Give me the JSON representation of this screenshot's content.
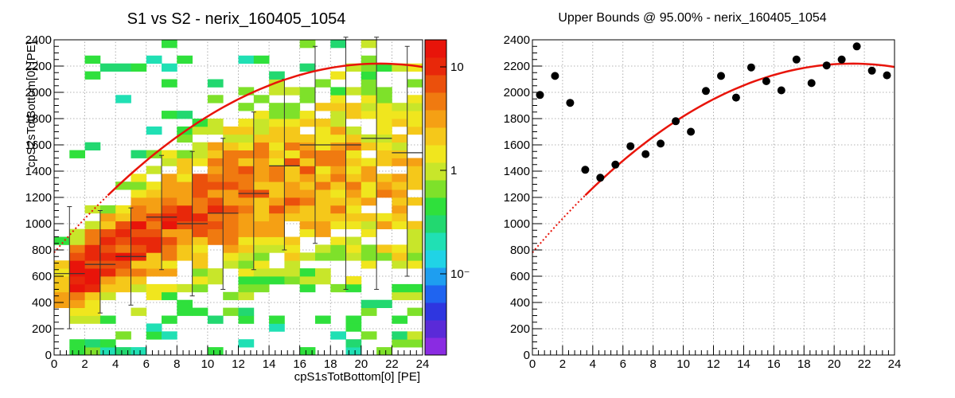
{
  "chart_data": [
    {
      "type": "heatmap",
      "title": "S1 vs S2 - nerix_160405_1054",
      "xlabel": "cpS1sTotBottom[0] [PE]",
      "ylabel": "cpS2sTotBottom[0] [PE]",
      "xlim": [
        0,
        24
      ],
      "ylim": [
        0,
        2400
      ],
      "xticks": [
        "0",
        "2",
        "4",
        "6",
        "8",
        "10",
        "12",
        "14",
        "16",
        "18",
        "20",
        "22",
        "24"
      ],
      "yticks": [
        "0",
        "200",
        "400",
        "600",
        "800",
        "1000",
        "1200",
        "1400",
        "1600",
        "1800",
        "2000",
        "2200",
        "2400"
      ],
      "grid": true,
      "colorbar": {
        "scale": "log",
        "labels": [
          "10",
          "1",
          "10⁻"
        ],
        "palette": "rainbow"
      },
      "profile": {
        "x": [
          1,
          3,
          5,
          7,
          9,
          11,
          13,
          15,
          17,
          19,
          21,
          23
        ],
        "mean": [
          620,
          690,
          750,
          1050,
          1000,
          1080,
          1230,
          1440,
          1600,
          1600,
          1650,
          1540
        ],
        "low": [
          200,
          320,
          380,
          650,
          450,
          500,
          650,
          800,
          850,
          500,
          500,
          600
        ],
        "high": [
          1130,
          1100,
          1120,
          1520,
          1550,
          1650,
          1850,
          2100,
          2350,
          2420,
          2420,
          2350
        ]
      },
      "fit": {
        "color": "#e8140a",
        "solid_range": [
          3.5,
          24
        ],
        "dotted_range": [
          0,
          3.5
        ],
        "coeffs": [
          780,
          135.7,
          -3.2
        ]
      }
    },
    {
      "type": "scatter",
      "title": "Upper Bounds @ 95.00% - nerix_160405_1054",
      "xlabel": "",
      "ylabel": "",
      "xlim": [
        0,
        24
      ],
      "ylim": [
        0,
        2400
      ],
      "xticks": [
        "0",
        "2",
        "4",
        "6",
        "8",
        "10",
        "12",
        "14",
        "16",
        "18",
        "20",
        "22",
        "24"
      ],
      "yticks": [
        "0",
        "200",
        "400",
        "600",
        "800",
        "1000",
        "1200",
        "1400",
        "1600",
        "1800",
        "2000",
        "2200",
        "2400"
      ],
      "grid": true,
      "points": [
        {
          "x": 0.5,
          "y": 1980
        },
        {
          "x": 1.5,
          "y": 2125
        },
        {
          "x": 2.5,
          "y": 1920
        },
        {
          "x": 3.5,
          "y": 1410
        },
        {
          "x": 4.5,
          "y": 1350
        },
        {
          "x": 5.5,
          "y": 1450
        },
        {
          "x": 6.5,
          "y": 1590
        },
        {
          "x": 7.5,
          "y": 1530
        },
        {
          "x": 8.5,
          "y": 1610
        },
        {
          "x": 9.5,
          "y": 1780
        },
        {
          "x": 10.5,
          "y": 1700
        },
        {
          "x": 11.5,
          "y": 2010
        },
        {
          "x": 12.5,
          "y": 2125
        },
        {
          "x": 13.5,
          "y": 1960
        },
        {
          "x": 14.5,
          "y": 2190
        },
        {
          "x": 15.5,
          "y": 2085
        },
        {
          "x": 16.5,
          "y": 2015
        },
        {
          "x": 17.5,
          "y": 2250
        },
        {
          "x": 18.5,
          "y": 2070
        },
        {
          "x": 19.5,
          "y": 2205
        },
        {
          "x": 20.5,
          "y": 2250
        },
        {
          "x": 21.5,
          "y": 2350
        },
        {
          "x": 22.5,
          "y": 2165
        },
        {
          "x": 23.5,
          "y": 2130
        }
      ],
      "fit": {
        "color": "#e8140a",
        "solid_range": [
          3.5,
          24
        ],
        "dotted_range": [
          0,
          3.5
        ],
        "coeffs": [
          780,
          135.7,
          -3.2
        ]
      }
    }
  ]
}
